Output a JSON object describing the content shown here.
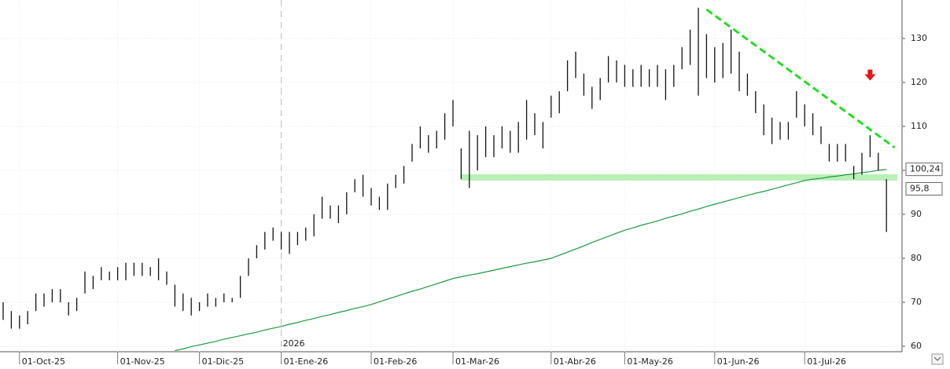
{
  "chart_data": {
    "type": "ohlc",
    "categories": [
      null,
      null,
      "01-Oct-25",
      null,
      null,
      null,
      null,
      null,
      null,
      null,
      null,
      null,
      null,
      null,
      "01-Nov-25",
      null,
      null,
      null,
      null,
      null,
      null,
      null,
      null,
      null,
      "01-Dic-25",
      null,
      null,
      null,
      null,
      null,
      null,
      null,
      null,
      null,
      "01-Ene-26",
      null,
      null,
      null,
      null,
      null,
      null,
      null,
      null,
      null,
      null,
      "01-Feb-26",
      null,
      null,
      null,
      null,
      null,
      null,
      null,
      null,
      null,
      "01-Mar-26",
      null,
      null,
      null,
      null,
      null,
      null,
      null,
      null,
      null,
      null,
      null,
      "01-Abr-26",
      null,
      null,
      null,
      null,
      null,
      null,
      null,
      null,
      "01-May-26",
      null,
      null,
      null,
      null,
      null,
      null,
      null,
      null,
      null,
      null,
      "01-Jun-26",
      null,
      null,
      null,
      null,
      null,
      null,
      null,
      null,
      null,
      null,
      "01-Jul-26",
      null,
      null,
      null,
      null,
      null,
      null,
      null,
      null,
      null,
      null
    ],
    "high": [
      70,
      68,
      67,
      68,
      72,
      72,
      73,
      73,
      70,
      71,
      77,
      76,
      78,
      77,
      78,
      79,
      79,
      79,
      78,
      80,
      77,
      74,
      72,
      71,
      70,
      72,
      71,
      72,
      71,
      76,
      80,
      83,
      86,
      87,
      86,
      86,
      86,
      87,
      90,
      94,
      92,
      92,
      95,
      98,
      99,
      96,
      94,
      97,
      99,
      101,
      106,
      110,
      108,
      109,
      113,
      116,
      105,
      109,
      108,
      110,
      108,
      110,
      109,
      111,
      116,
      113,
      111,
      117,
      118,
      125,
      127,
      122,
      119,
      121,
      126,
      125,
      124,
      123,
      124,
      123,
      124,
      123,
      124,
      128,
      132,
      137,
      131,
      128,
      129,
      132,
      127,
      122,
      118,
      115,
      112,
      111,
      111,
      118,
      115,
      113,
      110,
      106,
      106,
      106,
      101,
      104,
      108,
      104,
      98
    ],
    "low": [
      66,
      64,
      64,
      65,
      68,
      69,
      70,
      70,
      67,
      68,
      72,
      73,
      75,
      75,
      75,
      75,
      76,
      76,
      76,
      75,
      74,
      69,
      68,
      67,
      68,
      69,
      69,
      70,
      70,
      71,
      76,
      80,
      82,
      84,
      82,
      81,
      83,
      84,
      85,
      89,
      89,
      88,
      90,
      95,
      94,
      92,
      91,
      91,
      96,
      97,
      102,
      105,
      104,
      105,
      107,
      110,
      98,
      96,
      100,
      103,
      103,
      105,
      104,
      104,
      107,
      108,
      105,
      112,
      113,
      118,
      121,
      117,
      114,
      116,
      120,
      120,
      119,
      119,
      119,
      119,
      119,
      116,
      119,
      123,
      124,
      117,
      121,
      120,
      121,
      122,
      118,
      117,
      113,
      108,
      106,
      107,
      107,
      112,
      110,
      108,
      106,
      102,
      102,
      102,
      98,
      99,
      103,
      100,
      86
    ],
    "series": [
      {
        "color": "#1a9a3c",
        "values": [
          null,
          null,
          null,
          null,
          null,
          null,
          null,
          null,
          null,
          null,
          null,
          null,
          null,
          null,
          null,
          null,
          null,
          null,
          null,
          null,
          null,
          59.0,
          59.4,
          59.9,
          60.3,
          60.7,
          61.1,
          61.6,
          62.0,
          62.4,
          62.8,
          63.2,
          63.7,
          64.1,
          64.5,
          65.0,
          65.4,
          65.9,
          66.3,
          66.8,
          67.2,
          67.7,
          68.1,
          68.6,
          69.0,
          69.5,
          70.1,
          70.7,
          71.3,
          71.9,
          72.5,
          73.0,
          73.6,
          74.2,
          74.8,
          75.4,
          75.8,
          76.2,
          76.5,
          76.9,
          77.3,
          77.7,
          78.1,
          78.5,
          78.9,
          79.2,
          79.6,
          80.0,
          80.7,
          81.4,
          82.1,
          82.8,
          83.6,
          84.3,
          85.0,
          85.7,
          86.4,
          86.9,
          87.5,
          88.0,
          88.5,
          89.1,
          89.6,
          90.1,
          90.7,
          91.2,
          91.8,
          92.3,
          92.8,
          93.3,
          93.8,
          94.3,
          94.8,
          95.2,
          95.7,
          96.2,
          96.7,
          97.2,
          97.7,
          98.0,
          98.2,
          98.5,
          98.7,
          99.0,
          99.2,
          99.5,
          99.7,
          100.0,
          100.2
        ]
      }
    ],
    "bar_color": "#111111",
    "support_level": 98.4,
    "support_color": "#b8f0b8",
    "trendline": {
      "start": [
        86,
        136.6
      ],
      "end": [
        109,
        105.2
      ],
      "color": "#22dd22"
    },
    "marker": {
      "index": 106,
      "value": 121.5,
      "color": "#e8151b"
    },
    "year_label": {
      "index": 34,
      "label": "2026"
    },
    "price_labels": [
      {
        "value": 100.24,
        "label": "100,24"
      },
      {
        "value": 95.8,
        "label": "95,8"
      }
    ],
    "ylim": [
      58.75,
      138.75
    ],
    "yticks": [
      60,
      70,
      80,
      90,
      100,
      110,
      120,
      130
    ],
    "grid": true
  }
}
